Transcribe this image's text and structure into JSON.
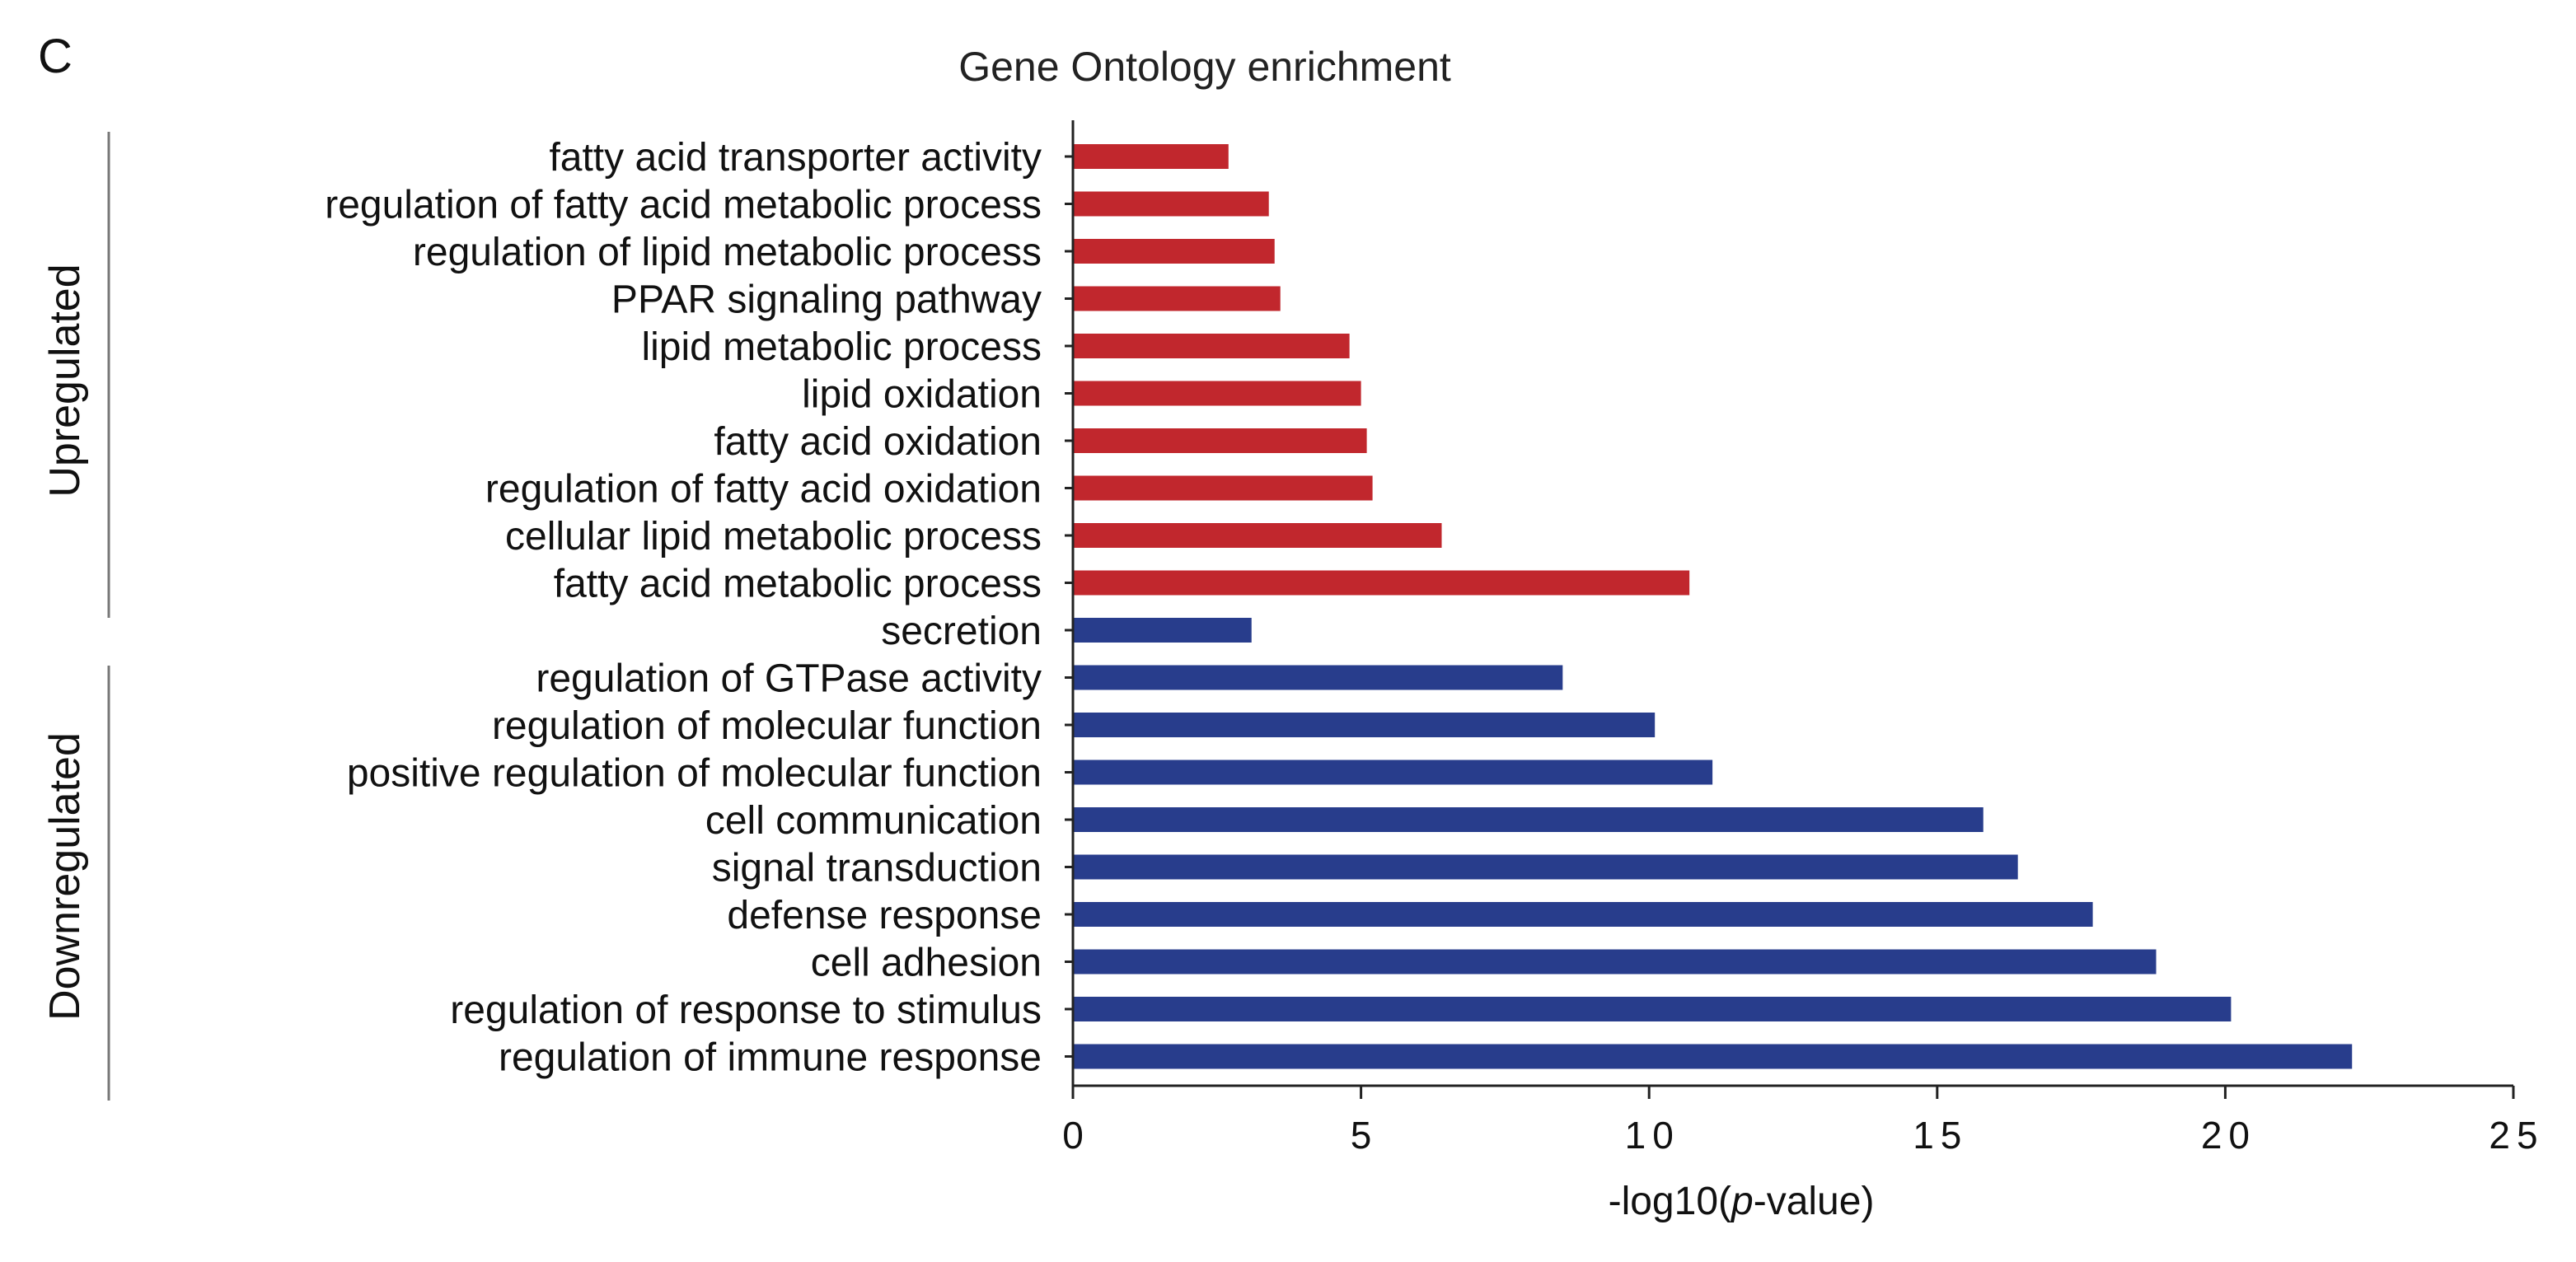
{
  "panel_letter": "C",
  "chart_data": {
    "type": "bar",
    "orientation": "horizontal",
    "title": "Gene Ontology enrichment",
    "xlabel_prefix": "-log10(",
    "xlabel_italic": "p",
    "xlabel_suffix": "-value)",
    "xlim": [
      0,
      25
    ],
    "xticks": [
      "0",
      "5",
      "10",
      "15",
      "20",
      "25"
    ],
    "xtick_values": [
      0,
      5,
      10,
      15,
      20,
      25
    ],
    "categories": [
      "fatty acid transporter activity",
      "regulation of fatty acid metabolic process",
      "regulation of lipid metabolic process",
      "PPAR signaling pathway",
      "lipid metabolic process",
      "lipid oxidation",
      "fatty acid oxidation",
      "regulation of fatty acid oxidation",
      "cellular lipid metabolic process",
      "fatty acid metabolic process",
      "secretion",
      "regulation of GTPase activity",
      "regulation of molecular function",
      "positive regulation of molecular function",
      "cell communication",
      "signal transduction",
      "defense response",
      "cell adhesion",
      "regulation of response to stimulus",
      "regulation of immune response"
    ],
    "values": [
      2.7,
      3.4,
      3.5,
      3.6,
      4.8,
      5.0,
      5.1,
      5.2,
      6.4,
      10.7,
      3.1,
      8.5,
      10.1,
      11.1,
      15.8,
      16.4,
      17.7,
      18.8,
      20.1,
      22.2
    ],
    "groups": [
      "up",
      "up",
      "up",
      "up",
      "up",
      "up",
      "up",
      "up",
      "up",
      "up",
      "down",
      "down",
      "down",
      "down",
      "down",
      "down",
      "down",
      "down",
      "down",
      "down"
    ],
    "group_labels": {
      "up": "Upregulated",
      "down": "Downregulated"
    },
    "colors": {
      "up": "#c1272d",
      "down": "#283d8c"
    }
  }
}
